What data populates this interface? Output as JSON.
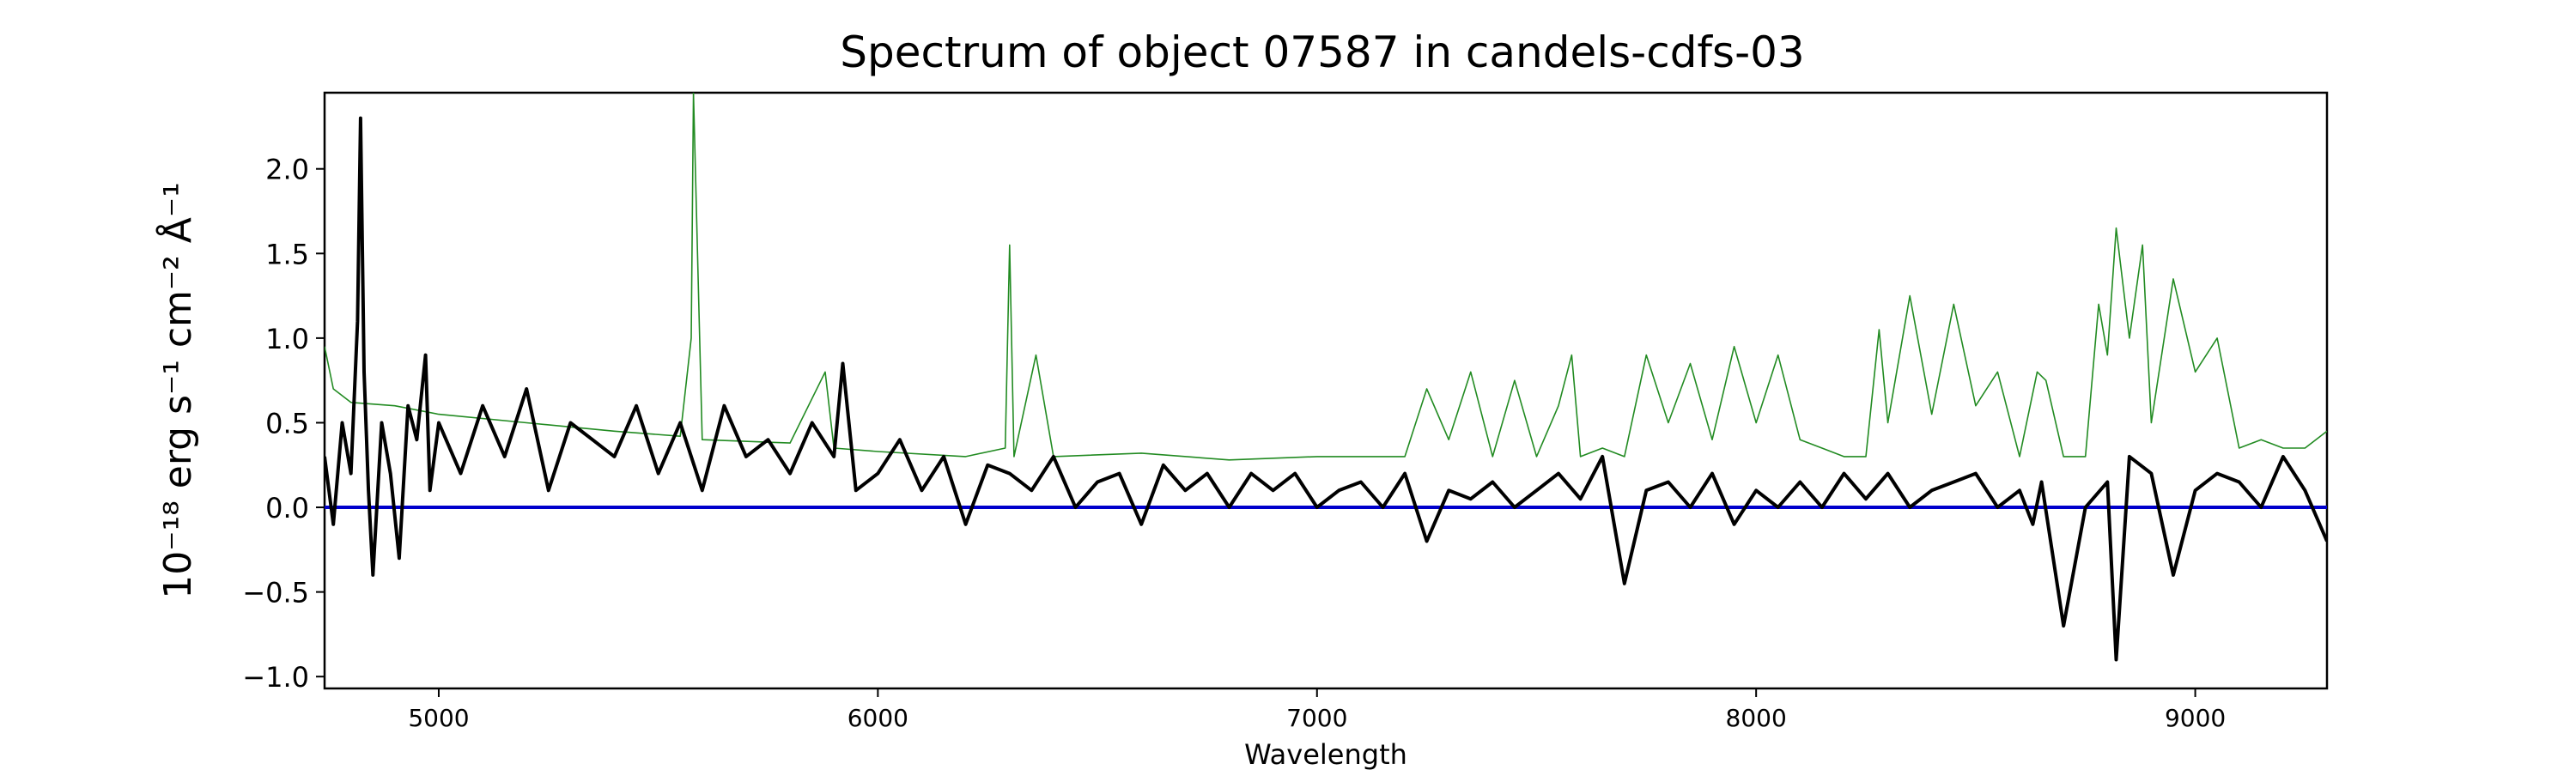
{
  "chart_data": {
    "type": "line",
    "title": "Spectrum of object 07587 in candels-cdfs-03",
    "xlabel": "Wavelength",
    "ylabel": "10⁻¹⁸ erg s⁻¹ cm⁻² Å⁻¹",
    "xlim": [
      4740,
      9300
    ],
    "ylim": [
      -1.07,
      2.45
    ],
    "xticks": [
      5000,
      6000,
      7000,
      8000,
      9000
    ],
    "xtick_labels": [
      "5000",
      "6000",
      "7000",
      "8000",
      "9000"
    ],
    "yticks": [
      -1.0,
      -0.5,
      0.0,
      0.5,
      1.0,
      1.5,
      2.0
    ],
    "ytick_labels": [
      "−1.0",
      "−0.5",
      "0.0",
      "0.5",
      "1.0",
      "1.5",
      "2.0"
    ],
    "grid": false,
    "legend": "none",
    "series": [
      {
        "role": "flux",
        "color": "#000000",
        "x": [
          4740,
          4760,
          4780,
          4800,
          4815,
          4822,
          4830,
          4840,
          4850,
          4870,
          4890,
          4910,
          4930,
          4950,
          4970,
          4980,
          5000,
          5050,
          5100,
          5150,
          5200,
          5250,
          5300,
          5350,
          5400,
          5450,
          5500,
          5550,
          5600,
          5650,
          5700,
          5750,
          5800,
          5850,
          5900,
          5920,
          5950,
          6000,
          6050,
          6100,
          6150,
          6200,
          6250,
          6300,
          6350,
          6400,
          6450,
          6500,
          6550,
          6600,
          6650,
          6700,
          6750,
          6800,
          6850,
          6900,
          6950,
          7000,
          7050,
          7100,
          7150,
          7200,
          7250,
          7300,
          7350,
          7400,
          7450,
          7500,
          7550,
          7600,
          7650,
          7700,
          7750,
          7800,
          7850,
          7900,
          7950,
          8000,
          8050,
          8100,
          8150,
          8200,
          8250,
          8300,
          8350,
          8400,
          8450,
          8500,
          8550,
          8600,
          8630,
          8650,
          8700,
          8750,
          8800,
          8820,
          8850,
          8900,
          8950,
          9000,
          9050,
          9100,
          9150,
          9200,
          9250,
          9300
        ],
        "y": [
          0.3,
          -0.1,
          0.5,
          0.2,
          1.1,
          2.3,
          0.8,
          0.1,
          -0.4,
          0.5,
          0.2,
          -0.3,
          0.6,
          0.4,
          0.9,
          0.1,
          0.5,
          0.2,
          0.6,
          0.3,
          0.7,
          0.1,
          0.5,
          0.4,
          0.3,
          0.6,
          0.2,
          0.5,
          0.1,
          0.6,
          0.3,
          0.4,
          0.2,
          0.5,
          0.3,
          0.85,
          0.1,
          0.2,
          0.4,
          0.1,
          0.3,
          -0.1,
          0.25,
          0.2,
          0.1,
          0.3,
          0.0,
          0.15,
          0.2,
          -0.1,
          0.25,
          0.1,
          0.2,
          0.0,
          0.2,
          0.1,
          0.2,
          0.0,
          0.1,
          0.15,
          0.0,
          0.2,
          -0.2,
          0.1,
          0.05,
          0.15,
          0.0,
          0.1,
          0.2,
          0.05,
          0.3,
          -0.45,
          0.1,
          0.15,
          0.0,
          0.2,
          -0.1,
          0.1,
          0.0,
          0.15,
          0.0,
          0.2,
          0.05,
          0.2,
          0.0,
          0.1,
          0.15,
          0.2,
          0.0,
          0.1,
          -0.1,
          0.15,
          -0.7,
          0.0,
          0.15,
          -0.9,
          0.3,
          0.2,
          -0.4,
          0.1,
          0.2,
          0.15,
          0.0,
          0.3,
          0.1,
          -0.2
        ]
      },
      {
        "role": "error",
        "color": "#228b22",
        "x": [
          4740,
          4760,
          4800,
          4900,
          5000,
          5200,
          5400,
          5550,
          5575,
          5580,
          5600,
          5800,
          5880,
          5900,
          6000,
          6200,
          6290,
          6300,
          6310,
          6360,
          6400,
          6600,
          6800,
          7000,
          7200,
          7250,
          7300,
          7350,
          7400,
          7450,
          7500,
          7550,
          7580,
          7600,
          7650,
          7700,
          7750,
          7800,
          7850,
          7900,
          7950,
          8000,
          8050,
          8100,
          8150,
          8200,
          8250,
          8280,
          8300,
          8350,
          8400,
          8450,
          8500,
          8550,
          8600,
          8640,
          8660,
          8700,
          8750,
          8780,
          8800,
          8820,
          8850,
          8880,
          8900,
          8950,
          9000,
          9050,
          9100,
          9150,
          9200,
          9250,
          9300
        ],
        "y": [
          0.95,
          0.7,
          0.62,
          0.6,
          0.55,
          0.5,
          0.45,
          0.42,
          1.0,
          2.45,
          0.4,
          0.38,
          0.8,
          0.35,
          0.33,
          0.3,
          0.35,
          1.55,
          0.3,
          0.9,
          0.3,
          0.32,
          0.28,
          0.3,
          0.3,
          0.7,
          0.4,
          0.8,
          0.3,
          0.75,
          0.3,
          0.6,
          0.9,
          0.3,
          0.35,
          0.3,
          0.9,
          0.5,
          0.85,
          0.4,
          0.95,
          0.5,
          0.9,
          0.4,
          0.35,
          0.3,
          0.3,
          1.05,
          0.5,
          1.25,
          0.55,
          1.2,
          0.6,
          0.8,
          0.3,
          0.8,
          0.75,
          0.3,
          0.3,
          1.2,
          0.9,
          1.65,
          1.0,
          1.55,
          0.5,
          1.35,
          0.8,
          1.0,
          0.35,
          0.4,
          0.35,
          0.35,
          0.45
        ]
      },
      {
        "role": "zero",
        "color": "#0000cc",
        "x": [
          4740,
          9300
        ],
        "y": [
          0.0,
          0.0
        ]
      }
    ]
  }
}
